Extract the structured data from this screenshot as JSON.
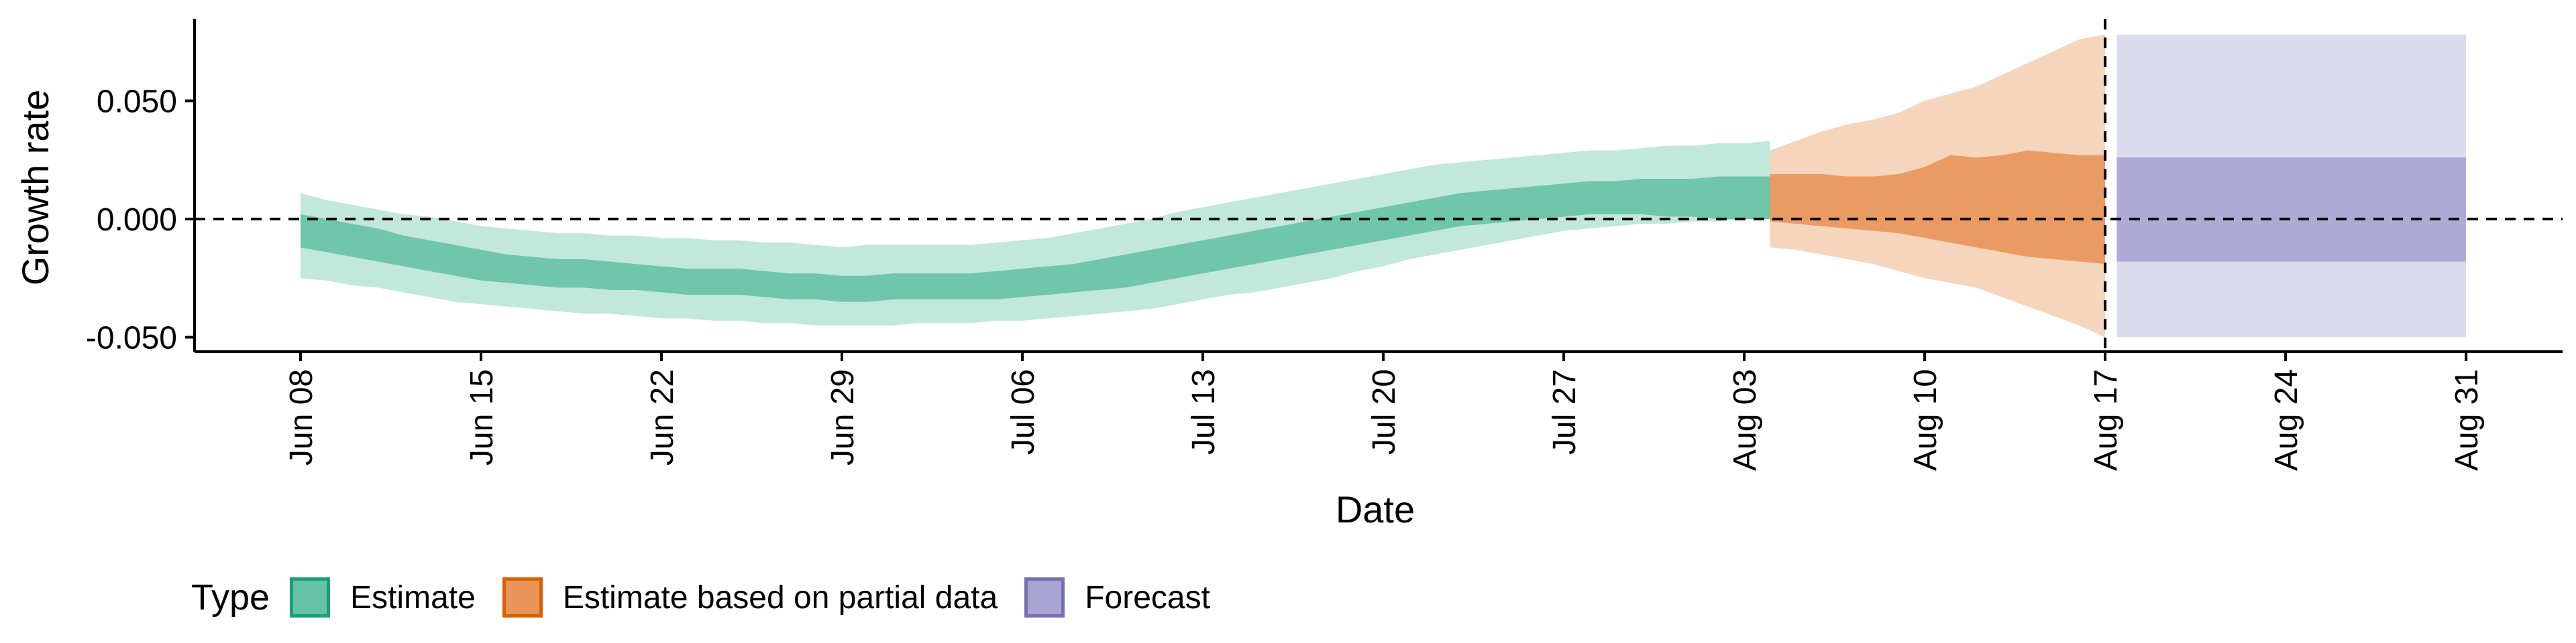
{
  "chart_data": {
    "type": "area",
    "xlabel": "Date",
    "ylabel": "Growth rate",
    "x_ticks": [
      "Jun 08",
      "Jun 15",
      "Jun 22",
      "Jun 29",
      "Jul 06",
      "Jul 13",
      "Jul 20",
      "Jul 27",
      "Aug 03",
      "Aug 10",
      "Aug 17",
      "Aug 24",
      "Aug 31"
    ],
    "y_ticks": [
      "0.050",
      "0.000",
      "-0.050"
    ],
    "ylim": [
      -0.056,
      0.085
    ],
    "reference_lines": {
      "horizontal_y": 0,
      "vertical_x": "Aug 17"
    },
    "legend": {
      "title": "Type",
      "position": "bottom",
      "items": [
        {
          "label": "Estimate",
          "fill": "#66C2A5",
          "stroke": "#1B9E77"
        },
        {
          "label": "Estimate based on partial data",
          "fill": "#E9955A",
          "stroke": "#D95F02"
        },
        {
          "label": "Forecast",
          "fill": "#A8A4D1",
          "stroke": "#7570B3"
        }
      ]
    },
    "series": [
      {
        "name": "Estimate",
        "x_start": "Jun 08",
        "step_days": 1,
        "color": "#66C2A5",
        "mid_low": [
          -0.012,
          -0.014,
          -0.016,
          -0.018,
          -0.02,
          -0.022,
          -0.024,
          -0.026,
          -0.027,
          -0.028,
          -0.029,
          -0.029,
          -0.03,
          -0.03,
          -0.031,
          -0.032,
          -0.032,
          -0.032,
          -0.033,
          -0.034,
          -0.034,
          -0.035,
          -0.035,
          -0.034,
          -0.034,
          -0.034,
          -0.034,
          -0.034,
          -0.033,
          -0.032,
          -0.031,
          -0.03,
          -0.029,
          -0.027,
          -0.025,
          -0.023,
          -0.021,
          -0.019,
          -0.017,
          -0.015,
          -0.013,
          -0.011,
          -0.009,
          -0.007,
          -0.005,
          -0.003,
          -0.002,
          -0.001,
          0.0,
          0.001,
          0.002,
          0.002,
          0.002,
          0.001,
          0.001,
          0.0,
          0.0,
          0.0
        ],
        "mid_high": [
          0.002,
          0.0,
          -0.002,
          -0.004,
          -0.007,
          -0.009,
          -0.011,
          -0.013,
          -0.015,
          -0.016,
          -0.017,
          -0.017,
          -0.018,
          -0.019,
          -0.02,
          -0.021,
          -0.021,
          -0.021,
          -0.022,
          -0.023,
          -0.023,
          -0.024,
          -0.024,
          -0.023,
          -0.023,
          -0.023,
          -0.023,
          -0.022,
          -0.021,
          -0.02,
          -0.019,
          -0.017,
          -0.015,
          -0.013,
          -0.011,
          -0.009,
          -0.007,
          -0.005,
          -0.003,
          -0.001,
          0.001,
          0.003,
          0.005,
          0.007,
          0.009,
          0.011,
          0.012,
          0.013,
          0.014,
          0.015,
          0.016,
          0.016,
          0.017,
          0.017,
          0.017,
          0.018,
          0.018,
          0.018
        ],
        "outer_low": [
          -0.025,
          -0.026,
          -0.028,
          -0.029,
          -0.031,
          -0.033,
          -0.035,
          -0.036,
          -0.037,
          -0.038,
          -0.039,
          -0.04,
          -0.04,
          -0.041,
          -0.042,
          -0.042,
          -0.043,
          -0.043,
          -0.044,
          -0.044,
          -0.045,
          -0.045,
          -0.045,
          -0.045,
          -0.044,
          -0.044,
          -0.044,
          -0.043,
          -0.043,
          -0.042,
          -0.041,
          -0.04,
          -0.039,
          -0.038,
          -0.036,
          -0.034,
          -0.032,
          -0.031,
          -0.029,
          -0.027,
          -0.025,
          -0.022,
          -0.02,
          -0.017,
          -0.015,
          -0.013,
          -0.011,
          -0.009,
          -0.007,
          -0.005,
          -0.004,
          -0.003,
          -0.002,
          -0.002,
          -0.001,
          -0.001,
          0.0,
          0.0
        ],
        "outer_high": [
          0.011,
          0.008,
          0.006,
          0.004,
          0.002,
          0.001,
          -0.001,
          -0.003,
          -0.004,
          -0.005,
          -0.006,
          -0.006,
          -0.007,
          -0.007,
          -0.008,
          -0.008,
          -0.009,
          -0.009,
          -0.01,
          -0.01,
          -0.011,
          -0.012,
          -0.011,
          -0.011,
          -0.011,
          -0.011,
          -0.011,
          -0.01,
          -0.009,
          -0.008,
          -0.006,
          -0.004,
          -0.002,
          0.0,
          0.003,
          0.005,
          0.007,
          0.009,
          0.011,
          0.013,
          0.015,
          0.017,
          0.019,
          0.021,
          0.023,
          0.024,
          0.025,
          0.026,
          0.027,
          0.028,
          0.029,
          0.029,
          0.03,
          0.031,
          0.031,
          0.032,
          0.032,
          0.033
        ]
      },
      {
        "name": "Estimate based on partial data",
        "x_start": "Aug 04",
        "step_days": 1,
        "color": "#E9955A",
        "mid_low": [
          -0.001,
          -0.002,
          -0.003,
          -0.004,
          -0.005,
          -0.006,
          -0.008,
          -0.01,
          -0.012,
          -0.014,
          -0.016,
          -0.017,
          -0.018,
          -0.019
        ],
        "mid_high": [
          0.019,
          0.019,
          0.019,
          0.018,
          0.018,
          0.019,
          0.022,
          0.027,
          0.026,
          0.027,
          0.029,
          0.028,
          0.027,
          0.027
        ],
        "outer_low": [
          -0.012,
          -0.013,
          -0.015,
          -0.017,
          -0.019,
          -0.022,
          -0.025,
          -0.027,
          -0.029,
          -0.033,
          -0.037,
          -0.041,
          -0.045,
          -0.05
        ],
        "outer_high": [
          0.029,
          0.033,
          0.037,
          0.04,
          0.042,
          0.045,
          0.05,
          0.053,
          0.056,
          0.061,
          0.066,
          0.071,
          0.076,
          0.078
        ]
      },
      {
        "name": "Forecast",
        "x_start": "Aug 18",
        "x_end": "Aug 31",
        "color": "#A8A4D1",
        "mid_low": -0.018,
        "mid_high": 0.026,
        "outer_low": -0.05,
        "outer_high": 0.078
      }
    ]
  }
}
